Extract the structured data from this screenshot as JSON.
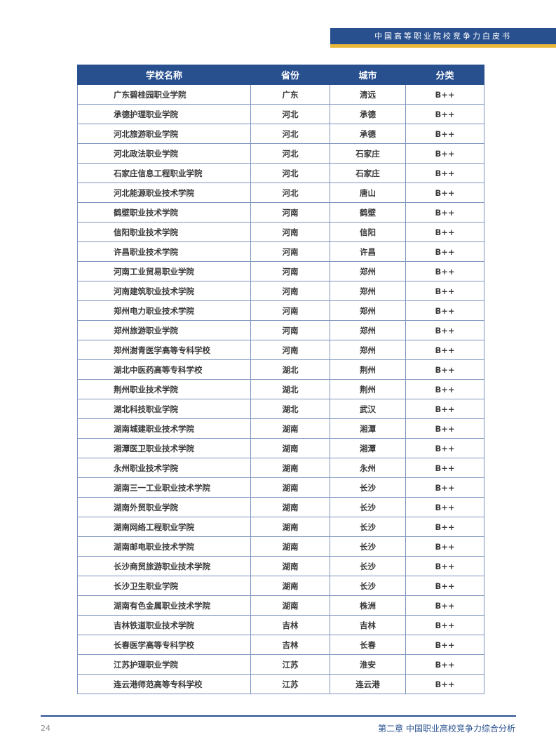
{
  "header": {
    "title": "中国高等职业院校竞争力白皮书",
    "accent": "#28508f",
    "gold": "#e8b83a"
  },
  "table": {
    "columns": [
      "学校名称",
      "省份",
      "城市",
      "分类"
    ],
    "rows": [
      [
        "广东碧桂园职业学院",
        "广东",
        "清远",
        "B++"
      ],
      [
        "承德护理职业学院",
        "河北",
        "承德",
        "B++"
      ],
      [
        "河北旅游职业学院",
        "河北",
        "承德",
        "B++"
      ],
      [
        "河北政法职业学院",
        "河北",
        "石家庄",
        "B++"
      ],
      [
        "石家庄信息工程职业学院",
        "河北",
        "石家庄",
        "B++"
      ],
      [
        "河北能源职业技术学院",
        "河北",
        "唐山",
        "B++"
      ],
      [
        "鹤壁职业技术学院",
        "河南",
        "鹤壁",
        "B++"
      ],
      [
        "信阳职业技术学院",
        "河南",
        "信阳",
        "B++"
      ],
      [
        "许昌职业技术学院",
        "河南",
        "许昌",
        "B++"
      ],
      [
        "河南工业贸易职业学院",
        "河南",
        "郑州",
        "B++"
      ],
      [
        "河南建筑职业技术学院",
        "河南",
        "郑州",
        "B++"
      ],
      [
        "郑州电力职业技术学院",
        "河南",
        "郑州",
        "B++"
      ],
      [
        "郑州旅游职业学院",
        "河南",
        "郑州",
        "B++"
      ],
      [
        "郑州澍青医学高等专科学校",
        "河南",
        "郑州",
        "B++"
      ],
      [
        "湖北中医药高等专科学校",
        "湖北",
        "荆州",
        "B++"
      ],
      [
        "荆州职业技术学院",
        "湖北",
        "荆州",
        "B++"
      ],
      [
        "湖北科技职业学院",
        "湖北",
        "武汉",
        "B++"
      ],
      [
        "湖南城建职业技术学院",
        "湖南",
        "湘潭",
        "B++"
      ],
      [
        "湘潭医卫职业技术学院",
        "湖南",
        "湘潭",
        "B++"
      ],
      [
        "永州职业技术学院",
        "湖南",
        "永州",
        "B++"
      ],
      [
        "湖南三一工业职业技术学院",
        "湖南",
        "长沙",
        "B++"
      ],
      [
        "湖南外贸职业学院",
        "湖南",
        "长沙",
        "B++"
      ],
      [
        "湖南网络工程职业学院",
        "湖南",
        "长沙",
        "B++"
      ],
      [
        "湖南邮电职业技术学院",
        "湖南",
        "长沙",
        "B++"
      ],
      [
        "长沙商贸旅游职业技术学院",
        "湖南",
        "长沙",
        "B++"
      ],
      [
        "长沙卫生职业学院",
        "湖南",
        "长沙",
        "B++"
      ],
      [
        "湖南有色金属职业技术学院",
        "湖南",
        "株洲",
        "B++"
      ],
      [
        "吉林铁道职业技术学院",
        "吉林",
        "吉林",
        "B++"
      ],
      [
        "长春医学高等专科学校",
        "吉林",
        "长春",
        "B++"
      ],
      [
        "江苏护理职业学院",
        "江苏",
        "淮安",
        "B++"
      ],
      [
        "连云港师范高等专科学校",
        "江苏",
        "连云港",
        "B++"
      ]
    ]
  },
  "footer": {
    "page_number": "24",
    "chapter": "第二章 中国职业高校竞争力综合分析"
  }
}
